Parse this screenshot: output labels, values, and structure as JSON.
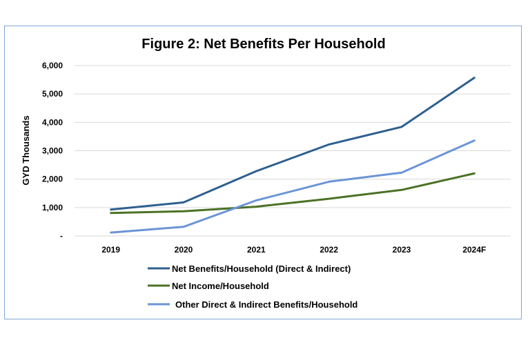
{
  "chart_data": {
    "type": "line",
    "title": "Figure 2: Net Benefits Per Household",
    "xlabel": "",
    "ylabel": "GYD Thousands",
    "categories": [
      "2019",
      "2020",
      "2021",
      "2022",
      "2023",
      "2024F"
    ],
    "ylim": [
      0,
      6000
    ],
    "yticks": [
      0,
      1000,
      2000,
      3000,
      4000,
      5000,
      6000
    ],
    "ytick_labels": [
      "-",
      "1,000",
      "2,000",
      "3,000",
      "4,000",
      "5,000",
      "6,000"
    ],
    "grid": true,
    "legend_position": "bottom",
    "series": [
      {
        "name": "Net Benefits/Household (Direct & Indirect)",
        "color": "#2e5f8f",
        "values": [
          930,
          1180,
          2280,
          3220,
          3840,
          5570
        ]
      },
      {
        "name": "Net Income/Household",
        "color": "#4b7124",
        "values": [
          810,
          870,
          1030,
          1310,
          1620,
          2200
        ]
      },
      {
        "name": "Other Direct & Indirect Benefits/Household",
        "color": "#6b94d6",
        "values": [
          120,
          320,
          1250,
          1910,
          2230,
          3360
        ]
      }
    ]
  }
}
